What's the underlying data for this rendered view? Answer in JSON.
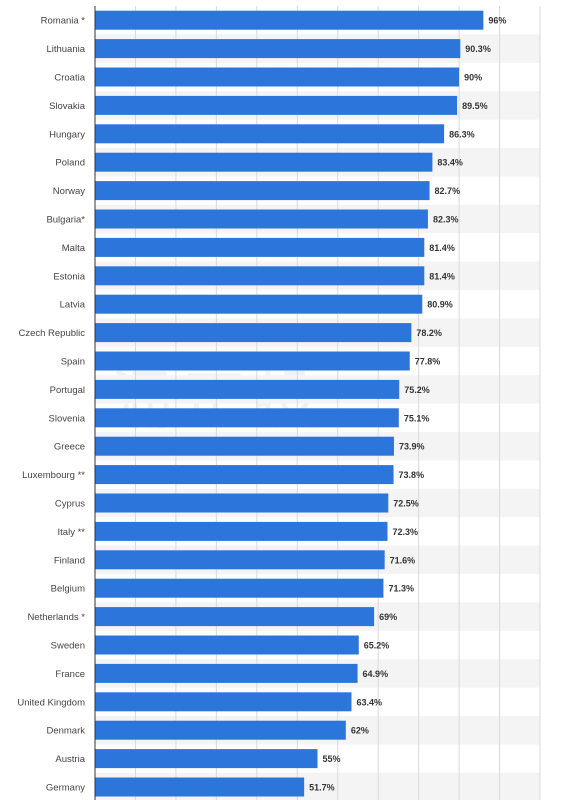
{
  "watermark": "涌正投",
  "chart_data": {
    "type": "bar",
    "orientation": "horizontal",
    "categories": [
      "Romania *",
      "Lithuania",
      "Croatia",
      "Slovakia",
      "Hungary",
      "Poland",
      "Norway",
      "Bulgaria*",
      "Malta",
      "Estonia",
      "Latvia",
      "Czech Republic",
      "Spain",
      "Portugal",
      "Slovenia",
      "Greece",
      "Luxembourg **",
      "Cyprus",
      "Italy **",
      "Finland",
      "Belgium",
      "Netherlands *",
      "Sweden",
      "France",
      "United Kingdom",
      "Denmark",
      "Austria",
      "Germany"
    ],
    "values": [
      96,
      90.3,
      90,
      89.5,
      86.3,
      83.4,
      82.7,
      82.3,
      81.4,
      81.4,
      80.9,
      78.2,
      77.8,
      75.2,
      75.1,
      73.9,
      73.8,
      72.5,
      72.3,
      71.6,
      71.3,
      69,
      65.2,
      64.9,
      63.4,
      62,
      55,
      51.7
    ],
    "value_labels": [
      "96%",
      "90.3%",
      "90%",
      "89.5%",
      "86.3%",
      "83.4%",
      "82.7%",
      "82.3%",
      "81.4%",
      "81.4%",
      "80.9%",
      "78.2%",
      "77.8%",
      "75.2%",
      "75.1%",
      "73.9%",
      "73.8%",
      "72.5%",
      "72.3%",
      "71.6%",
      "71.3%",
      "69%",
      "65.2%",
      "64.9%",
      "63.4%",
      "62%",
      "55%",
      "51.7%"
    ],
    "xlim": [
      0,
      110
    ],
    "grid": true,
    "title": "",
    "xlabel": "",
    "ylabel": "",
    "colors": {
      "bar": "#2c75db",
      "band": "#f4f4f4",
      "grid": "#d9d9d9",
      "axis": "#333333"
    }
  }
}
